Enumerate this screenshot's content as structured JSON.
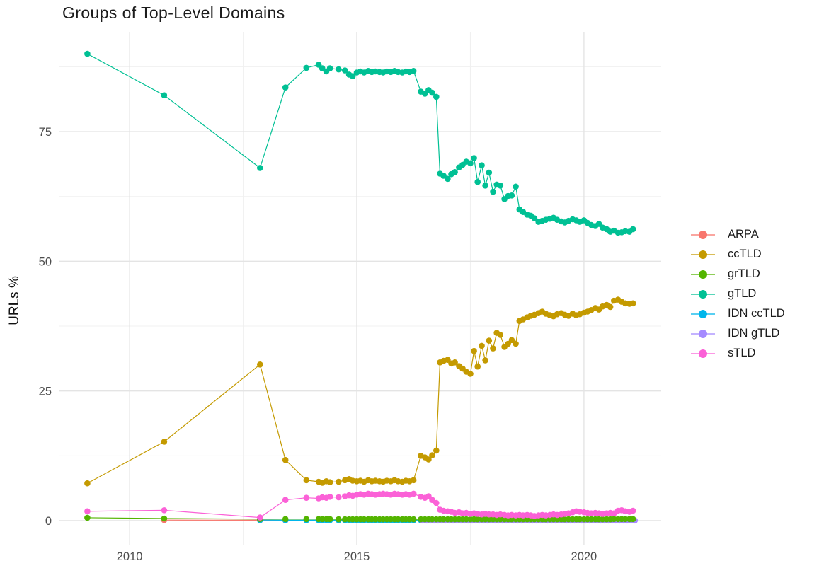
{
  "chart_data": {
    "type": "line",
    "title": "Groups of Top-Level Domains",
    "xlabel": "",
    "ylabel": "URLs %",
    "grid": true,
    "legend_position": "right",
    "xlim": [
      2008.44,
      2021.7
    ],
    "ylim": [
      -4.64,
      94.24
    ],
    "x_ticks": [
      {
        "value": 2010,
        "label": "2010"
      },
      {
        "value": 2015,
        "label": "2015"
      },
      {
        "value": 2020,
        "label": "2020"
      }
    ],
    "x_minor_ticks": [
      2012.5,
      2017.5
    ],
    "y_ticks": [
      {
        "value": 0,
        "label": "0"
      },
      {
        "value": 25,
        "label": "25"
      },
      {
        "value": 50,
        "label": "50"
      },
      {
        "value": 75,
        "label": "75"
      }
    ],
    "y_minor_ticks": [
      12.5,
      37.5,
      62.5,
      87.5
    ],
    "series": [
      {
        "name": "ARPA",
        "color": "#F8766D",
        "x": [
          2010.76,
          2012.87,
          2013.43
        ],
        "y": [
          0.1,
          0.08,
          0.05
        ]
      },
      {
        "name": "IDN ccTLD",
        "color": "#00B6EB",
        "x": [
          2012.87,
          2013.43,
          2013.89,
          2014.16,
          2014.24,
          2014.33,
          2014.41,
          2014.6,
          2014.74,
          2014.83,
          2014.91,
          2015.0,
          2015.08,
          2015.16,
          2015.25,
          2015.33,
          2015.41,
          2015.5,
          2015.58,
          2015.66,
          2015.75,
          2015.83,
          2015.91,
          2016.0,
          2016.08,
          2016.16,
          2016.25,
          2016.41,
          2016.5,
          2016.58,
          2016.66,
          2016.75,
          2016.83,
          2016.91,
          2017.0,
          2017.08,
          2017.16,
          2017.25,
          2017.33,
          2017.41,
          2017.5,
          2017.58,
          2017.66,
          2017.75,
          2017.83,
          2017.91,
          2018.0,
          2018.08,
          2018.16,
          2018.25,
          2018.33,
          2018.41,
          2018.5,
          2018.58,
          2018.66,
          2018.75,
          2018.83,
          2018.91,
          2019.0,
          2019.08,
          2019.16,
          2019.25,
          2019.33,
          2019.41,
          2019.5,
          2019.58,
          2019.66,
          2019.75,
          2019.83,
          2019.91,
          2020.0,
          2020.08,
          2020.16,
          2020.25,
          2020.33,
          2020.41,
          2020.5,
          2020.58,
          2020.66,
          2020.75,
          2020.83,
          2020.91,
          2021.0,
          2021.08
        ],
        "y": [
          0.1,
          0.08,
          0.08,
          0.08,
          0.08,
          0.08,
          0.08,
          0.08,
          0.08,
          0.08,
          0.08,
          0.08,
          0.08,
          0.08,
          0.08,
          0.08,
          0.08,
          0.08,
          0.08,
          0.08,
          0.08,
          0.08,
          0.08,
          0.08,
          0.08,
          0.08,
          0.08,
          0.08,
          0.08,
          0.08,
          0.08,
          0.08,
          0.08,
          0.08,
          0.08,
          0.08,
          0.08,
          0.08,
          0.08,
          0.08,
          0.08,
          0.08,
          0.08,
          0.08,
          0.08,
          0.08,
          0.08,
          0.08,
          0.08,
          0.08,
          0.08,
          0.08,
          0.08,
          0.08,
          0.08,
          0.08,
          0.08,
          0.08,
          0.08,
          0.08,
          0.08,
          0.08,
          0.08,
          0.08,
          0.08,
          0.08,
          0.08,
          0.08,
          0.08,
          0.08,
          0.08,
          0.08,
          0.08,
          0.08,
          0.08,
          0.08,
          0.08,
          0.08,
          0.08,
          0.08,
          0.08,
          0.08,
          0.08,
          0.08
        ]
      },
      {
        "name": "IDN gTLD",
        "color": "#A58AFF",
        "x": [
          2016.45,
          2016.54,
          2016.62,
          2016.7,
          2016.79,
          2016.87,
          2016.95,
          2017.04,
          2017.12,
          2017.2,
          2017.29,
          2017.37,
          2017.45,
          2017.54,
          2017.62,
          2017.7,
          2017.79,
          2017.87,
          2017.95,
          2018.04,
          2018.12,
          2018.2,
          2018.29,
          2018.37,
          2018.45,
          2018.54,
          2018.62,
          2018.7,
          2018.79,
          2018.87,
          2018.95,
          2019.04,
          2019.12,
          2019.2,
          2019.29,
          2019.37,
          2019.45,
          2019.54,
          2019.62,
          2019.7,
          2019.79,
          2019.87,
          2019.95,
          2020.04,
          2020.12,
          2020.2,
          2020.29,
          2020.37,
          2020.45,
          2020.54,
          2020.62,
          2020.7,
          2020.79,
          2020.87,
          2020.95,
          2021.04,
          2021.12
        ],
        "y": [
          0.02,
          0.02,
          0.02,
          0.02,
          0.02,
          0.02,
          0.02,
          0.02,
          0.02,
          0.02,
          0.02,
          0.02,
          0.02,
          0.02,
          0.02,
          0.02,
          0.02,
          0.02,
          0.02,
          0.02,
          0.02,
          0.02,
          0.02,
          0.02,
          0.02,
          0.02,
          0.02,
          0.02,
          0.02,
          0.02,
          0.02,
          0.02,
          0.02,
          0.02,
          0.02,
          0.02,
          0.02,
          0.02,
          0.02,
          0.02,
          0.02,
          0.02,
          0.02,
          0.02,
          0.02,
          0.02,
          0.02,
          0.02,
          0.02,
          0.02,
          0.02,
          0.02,
          0.02,
          0.02,
          0.02,
          0.02,
          0.02
        ]
      },
      {
        "name": "grTLD",
        "color": "#53B400",
        "x": [
          2009.07,
          2010.76,
          2012.87,
          2013.43,
          2013.89,
          2014.16,
          2014.24,
          2014.33,
          2014.41,
          2014.6,
          2014.74,
          2014.83,
          2014.91,
          2015.0,
          2015.08,
          2015.16,
          2015.25,
          2015.33,
          2015.41,
          2015.5,
          2015.58,
          2015.66,
          2015.75,
          2015.83,
          2015.91,
          2016.0,
          2016.08,
          2016.16,
          2016.25,
          2016.41,
          2016.5,
          2016.58,
          2016.66,
          2016.75,
          2016.83,
          2016.91,
          2017.0,
          2017.08,
          2017.16,
          2017.25,
          2017.33,
          2017.41,
          2017.5,
          2017.58,
          2017.66,
          2017.75,
          2017.83,
          2017.91,
          2018.0,
          2018.08,
          2018.16,
          2018.25,
          2018.33,
          2018.41,
          2018.5,
          2018.58,
          2018.66,
          2018.75,
          2018.83,
          2018.91,
          2019.0,
          2019.08,
          2019.16,
          2019.25,
          2019.33,
          2019.41,
          2019.5,
          2019.58,
          2019.66,
          2019.75,
          2019.83,
          2019.91,
          2020.0,
          2020.08,
          2020.16,
          2020.25,
          2020.33,
          2020.41,
          2020.5,
          2020.58,
          2020.66,
          2020.75,
          2020.83,
          2020.91,
          2021.0,
          2021.08
        ],
        "y": [
          0.55,
          0.4,
          0.3,
          0.3,
          0.3,
          0.3,
          0.3,
          0.3,
          0.3,
          0.25,
          0.25,
          0.25,
          0.25,
          0.25,
          0.25,
          0.25,
          0.25,
          0.25,
          0.25,
          0.25,
          0.25,
          0.25,
          0.25,
          0.25,
          0.25,
          0.25,
          0.25,
          0.25,
          0.25,
          0.25,
          0.25,
          0.25,
          0.25,
          0.25,
          0.25,
          0.25,
          0.25,
          0.25,
          0.25,
          0.25,
          0.25,
          0.25,
          0.25,
          0.25,
          0.25,
          0.25,
          0.25,
          0.25,
          0.25,
          0.25,
          0.25,
          0.25,
          0.25,
          0.25,
          0.25,
          0.25,
          0.25,
          0.25,
          0.25,
          0.25,
          0.25,
          0.25,
          0.25,
          0.25,
          0.25,
          0.25,
          0.25,
          0.25,
          0.25,
          0.25,
          0.25,
          0.25,
          0.25,
          0.25,
          0.25,
          0.25,
          0.25,
          0.25,
          0.25,
          0.25,
          0.3,
          0.3,
          0.3,
          0.3,
          0.3,
          0.3
        ]
      },
      {
        "name": "ccTLD",
        "color": "#C49A00",
        "x": [
          2009.07,
          2010.76,
          2012.87,
          2013.43,
          2013.89,
          2014.16,
          2014.24,
          2014.33,
          2014.41,
          2014.6,
          2014.74,
          2014.83,
          2014.91,
          2015.0,
          2015.08,
          2015.16,
          2015.25,
          2015.33,
          2015.41,
          2015.5,
          2015.58,
          2015.66,
          2015.75,
          2015.83,
          2015.91,
          2016.0,
          2016.08,
          2016.16,
          2016.25,
          2016.41,
          2016.5,
          2016.58,
          2016.66,
          2016.75,
          2016.83,
          2016.91,
          2017.0,
          2017.08,
          2017.16,
          2017.25,
          2017.33,
          2017.41,
          2017.5,
          2017.58,
          2017.66,
          2017.75,
          2017.83,
          2017.91,
          2018.0,
          2018.08,
          2018.16,
          2018.25,
          2018.33,
          2018.41,
          2018.5,
          2018.58,
          2018.66,
          2018.75,
          2018.83,
          2018.91,
          2019.0,
          2019.08,
          2019.16,
          2019.25,
          2019.33,
          2019.41,
          2019.5,
          2019.58,
          2019.66,
          2019.75,
          2019.83,
          2019.91,
          2020.0,
          2020.08,
          2020.16,
          2020.25,
          2020.33,
          2020.41,
          2020.5,
          2020.58,
          2020.66,
          2020.75,
          2020.83,
          2020.91,
          2021.0,
          2021.08
        ],
        "y": [
          7.2,
          15.2,
          30.1,
          11.7,
          7.8,
          7.5,
          7.3,
          7.6,
          7.4,
          7.5,
          7.8,
          8.0,
          7.7,
          7.6,
          7.7,
          7.5,
          7.8,
          7.6,
          7.7,
          7.6,
          7.5,
          7.7,
          7.6,
          7.8,
          7.6,
          7.5,
          7.7,
          7.6,
          7.8,
          12.5,
          12.2,
          11.8,
          12.6,
          13.5,
          30.5,
          30.8,
          31.0,
          30.3,
          30.5,
          29.8,
          29.3,
          28.7,
          28.3,
          32.7,
          29.7,
          33.7,
          30.9,
          34.7,
          33.2,
          36.2,
          35.8,
          33.5,
          34.1,
          34.8,
          34.1,
          38.5,
          38.8,
          39.2,
          39.5,
          39.7,
          40.0,
          40.3,
          39.9,
          39.6,
          39.4,
          39.8,
          40.0,
          39.7,
          39.5,
          39.9,
          39.6,
          39.8,
          40.1,
          40.3,
          40.6,
          41.0,
          40.7,
          41.3,
          41.6,
          41.2,
          42.4,
          42.6,
          42.2,
          41.9,
          41.8,
          41.9
        ]
      },
      {
        "name": "gTLD",
        "color": "#00C094",
        "x": [
          2009.07,
          2010.76,
          2012.87,
          2013.43,
          2013.89,
          2014.16,
          2014.24,
          2014.33,
          2014.41,
          2014.6,
          2014.74,
          2014.83,
          2014.91,
          2015.0,
          2015.08,
          2015.16,
          2015.25,
          2015.33,
          2015.41,
          2015.5,
          2015.58,
          2015.66,
          2015.75,
          2015.83,
          2015.91,
          2016.0,
          2016.08,
          2016.16,
          2016.25,
          2016.41,
          2016.5,
          2016.58,
          2016.66,
          2016.75,
          2016.83,
          2016.91,
          2017.0,
          2017.08,
          2017.16,
          2017.25,
          2017.33,
          2017.41,
          2017.5,
          2017.58,
          2017.66,
          2017.75,
          2017.83,
          2017.91,
          2018.0,
          2018.08,
          2018.16,
          2018.25,
          2018.33,
          2018.41,
          2018.5,
          2018.58,
          2018.66,
          2018.75,
          2018.83,
          2018.91,
          2019.0,
          2019.08,
          2019.16,
          2019.25,
          2019.33,
          2019.41,
          2019.5,
          2019.58,
          2019.66,
          2019.75,
          2019.83,
          2019.91,
          2020.0,
          2020.08,
          2020.16,
          2020.25,
          2020.33,
          2020.41,
          2020.5,
          2020.58,
          2020.66,
          2020.75,
          2020.83,
          2020.91,
          2021.0,
          2021.08
        ],
        "y": [
          90,
          82,
          68,
          83.5,
          87.3,
          87.9,
          87.2,
          86.6,
          87.2,
          87.0,
          86.8,
          86.0,
          85.7,
          86.4,
          86.6,
          86.4,
          86.7,
          86.5,
          86.6,
          86.5,
          86.4,
          86.6,
          86.5,
          86.7,
          86.5,
          86.4,
          86.6,
          86.5,
          86.7,
          82.7,
          82.3,
          83.0,
          82.5,
          81.7,
          66.9,
          66.5,
          65.9,
          66.8,
          67.2,
          68.1,
          68.6,
          69.2,
          68.9,
          69.9,
          65.3,
          68.5,
          64.6,
          67.1,
          63.4,
          64.8,
          64.6,
          62.0,
          62.6,
          62.7,
          64.4,
          60.0,
          59.5,
          59.0,
          58.8,
          58.3,
          57.6,
          57.8,
          58.0,
          58.2,
          58.4,
          58.0,
          57.7,
          57.5,
          57.8,
          58.1,
          57.9,
          57.6,
          57.9,
          57.4,
          57.0,
          56.8,
          57.2,
          56.5,
          56.2,
          55.7,
          55.9,
          55.5,
          55.6,
          55.8,
          55.7,
          56.2
        ]
      },
      {
        "name": "sTLD",
        "color": "#FB61D7",
        "x": [
          2009.07,
          2010.76,
          2012.87,
          2013.43,
          2013.89,
          2014.16,
          2014.24,
          2014.33,
          2014.41,
          2014.6,
          2014.74,
          2014.83,
          2014.91,
          2015.0,
          2015.08,
          2015.16,
          2015.25,
          2015.33,
          2015.41,
          2015.5,
          2015.58,
          2015.66,
          2015.75,
          2015.83,
          2015.91,
          2016.0,
          2016.08,
          2016.16,
          2016.25,
          2016.41,
          2016.5,
          2016.58,
          2016.66,
          2016.75,
          2016.83,
          2016.91,
          2017.0,
          2017.08,
          2017.16,
          2017.25,
          2017.33,
          2017.41,
          2017.5,
          2017.58,
          2017.66,
          2017.75,
          2017.83,
          2017.91,
          2018.0,
          2018.08,
          2018.16,
          2018.25,
          2018.33,
          2018.41,
          2018.5,
          2018.58,
          2018.66,
          2018.75,
          2018.83,
          2018.91,
          2019.0,
          2019.08,
          2019.16,
          2019.25,
          2019.33,
          2019.41,
          2019.5,
          2019.58,
          2019.66,
          2019.75,
          2019.83,
          2019.91,
          2020.0,
          2020.08,
          2020.16,
          2020.25,
          2020.33,
          2020.41,
          2020.5,
          2020.58,
          2020.66,
          2020.75,
          2020.83,
          2020.91,
          2021.0,
          2021.08
        ],
        "y": [
          1.8,
          2.0,
          0.6,
          4.0,
          4.4,
          4.3,
          4.5,
          4.4,
          4.6,
          4.5,
          4.7,
          4.9,
          4.8,
          5.0,
          5.1,
          5.0,
          5.2,
          5.1,
          5.0,
          5.1,
          5.2,
          5.1,
          5.0,
          5.2,
          5.1,
          5.0,
          5.1,
          5.0,
          5.2,
          4.6,
          4.4,
          4.7,
          4.0,
          3.4,
          2.1,
          1.9,
          1.8,
          1.7,
          1.5,
          1.6,
          1.4,
          1.5,
          1.3,
          1.4,
          1.3,
          1.2,
          1.3,
          1.2,
          1.2,
          1.1,
          1.2,
          1.1,
          1.0,
          1.1,
          1.0,
          1.1,
          1.0,
          1.1,
          1.0,
          0.9,
          1.0,
          1.1,
          1.0,
          1.1,
          1.2,
          1.1,
          1.2,
          1.3,
          1.4,
          1.6,
          1.8,
          1.7,
          1.6,
          1.5,
          1.4,
          1.5,
          1.4,
          1.3,
          1.4,
          1.5,
          1.4,
          1.9,
          2.0,
          1.8,
          1.7,
          1.9
        ]
      }
    ]
  },
  "legend": {
    "items": [
      {
        "label": "ARPA",
        "color": "#F8766D"
      },
      {
        "label": "ccTLD",
        "color": "#C49A00"
      },
      {
        "label": "grTLD",
        "color": "#53B400"
      },
      {
        "label": "gTLD",
        "color": "#00C094"
      },
      {
        "label": "IDN ccTLD",
        "color": "#00B6EB"
      },
      {
        "label": "IDN gTLD",
        "color": "#A58AFF"
      },
      {
        "label": "sTLD",
        "color": "#FB61D7"
      }
    ]
  },
  "colors": {
    "background": "#ffffff",
    "grid_major": "#e4e4e4",
    "grid_minor": "#f0f0f0",
    "tick_label": "#4d4d4d",
    "title_text": "#1c1c1c"
  }
}
